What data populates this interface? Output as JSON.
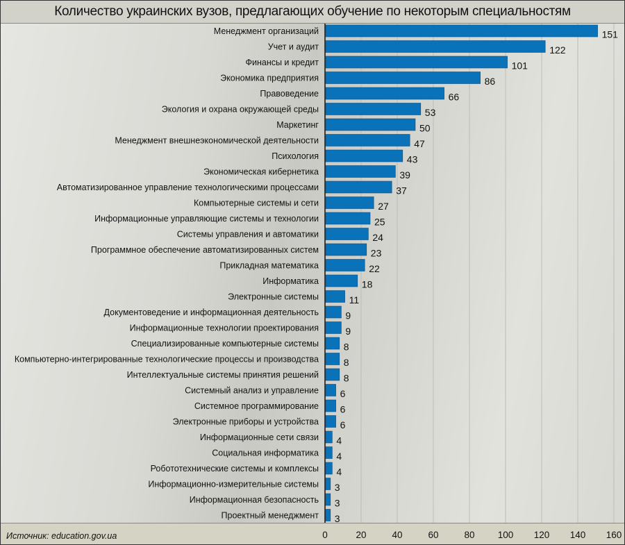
{
  "chart_data": {
    "type": "bar",
    "orientation": "horizontal",
    "title": "Количество украинских вузов, предлагающих обучение по некоторым специальностям",
    "source": "Источник: education.gov.ua",
    "xlim": [
      0,
      160
    ],
    "xticks": [
      0,
      20,
      40,
      60,
      80,
      100,
      120,
      140,
      160
    ],
    "grid": true,
    "bar_color": "#0a72b8",
    "categories": [
      "Менеджмент организаций",
      "Учет и аудит",
      "Финансы и кредит",
      "Экономика предприятия",
      "Правоведение",
      "Экология и охрана окружающей среды",
      "Маркетинг",
      "Менеджмент внешнеэкономической деятельности",
      "Психология",
      "Экономическая кибернетика",
      "Автоматизированное управление технологическими процессами",
      "Компьютерные системы и сети",
      "Информационные управляющие системы и технологии",
      "Системы управления и автоматики",
      "Программное обеспечение автоматизированных систем",
      "Прикладная математика",
      "Информатика",
      "Электронные системы",
      "Документоведение и информационная деятельность",
      "Информационные технологии проектирования",
      "Специализированные компьютерные системы",
      "Компьютерно-интегрированные технологические процессы и производства",
      "Интеллектуальные системы принятия решений",
      "Системный анализ и управление",
      "Системное программирование",
      "Электронные приборы и устройства",
      "Информационные сети связи",
      "Социальная информатика",
      "Робототехнические системы и комплексы",
      "Информационно-измерительные системы",
      "Информационная безопасность",
      "Проектный менеджмент"
    ],
    "values": [
      151,
      122,
      101,
      86,
      66,
      53,
      50,
      47,
      43,
      39,
      37,
      27,
      25,
      24,
      23,
      22,
      18,
      11,
      9,
      9,
      8,
      8,
      8,
      6,
      6,
      6,
      4,
      4,
      4,
      3,
      3,
      3
    ]
  }
}
